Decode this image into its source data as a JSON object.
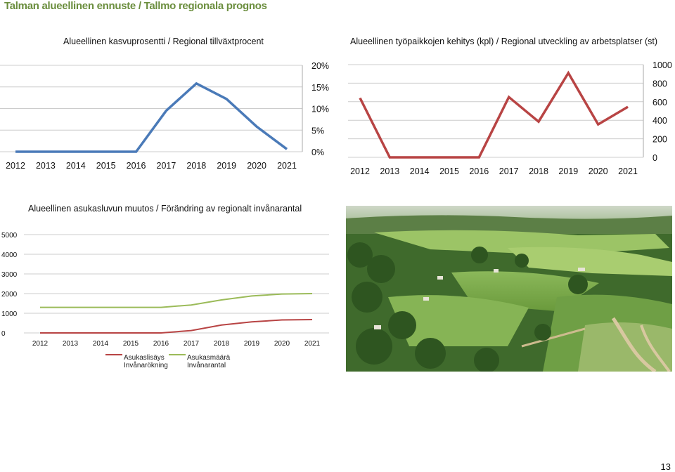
{
  "header": {
    "title": "Talman alueellinen ennuste / Tallmo regionala prognos",
    "page_number": "13"
  },
  "colors": {
    "growth_line": "#4a7ab8",
    "jobs_line": "#b84444",
    "increase_line": "#b84444",
    "population_line": "#9bbb59",
    "title_green": "#6b8e3e",
    "grid": "#cccccc"
  },
  "chart_data": [
    {
      "type": "line",
      "title": "Alueellinen kasvuprosentti / Regional tillväxtprocent",
      "categories": [
        "2012",
        "2013",
        "2014",
        "2015",
        "2016",
        "2017",
        "2018",
        "2019",
        "2020",
        "2021"
      ],
      "y_ticks": [
        "0%",
        "5%",
        "10%",
        "15%",
        "20%"
      ],
      "ylim": [
        0,
        20
      ],
      "y_axis_side": "right",
      "grid": true,
      "series": [
        {
          "values": [
            0,
            0,
            0,
            0,
            0,
            9.5,
            15.8,
            12.2,
            5.8,
            0.6
          ]
        }
      ]
    },
    {
      "type": "line",
      "title": "Alueellinen työpaikkojen kehitys (kpl) / Regional utveckling av arbetsplatser (st)",
      "categories": [
        "2012",
        "2013",
        "2014",
        "2015",
        "2016",
        "2017",
        "2018",
        "2019",
        "2020",
        "2021"
      ],
      "y_ticks": [
        "0",
        "200",
        "400",
        "600",
        "800",
        "1000"
      ],
      "ylim": [
        0,
        1000
      ],
      "y_axis_side": "right",
      "grid": true,
      "series": [
        {
          "values": [
            640,
            0,
            0,
            0,
            0,
            650,
            385,
            910,
            355,
            545
          ]
        }
      ]
    },
    {
      "type": "line",
      "title": "Alueellinen asukasluvun muutos / Förändring av regionalt invånarantal",
      "categories": [
        "2012",
        "2013",
        "2014",
        "2015",
        "2016",
        "2017",
        "2018",
        "2019",
        "2020",
        "2021"
      ],
      "y_ticks": [
        "0",
        "1000",
        "2000",
        "3000",
        "4000",
        "5000"
      ],
      "ylim": [
        0,
        5000
      ],
      "y_axis_side": "left",
      "grid": true,
      "legend_position": "bottom-left",
      "series": [
        {
          "name": "Asukaslisäys Invånarökning",
          "name_fi": "Asukaslisäys",
          "name_sv": "Invånarökning",
          "values": [
            0,
            0,
            0,
            0,
            0,
            120,
            400,
            560,
            660,
            680
          ]
        },
        {
          "name": "Asukasmäärä Invånarantal",
          "name_fi": "Asukasmäärä",
          "name_sv": "Invånarantal",
          "values": [
            1300,
            1300,
            1300,
            1300,
            1300,
            1420,
            1680,
            1880,
            1980,
            2000
          ]
        }
      ]
    }
  ]
}
